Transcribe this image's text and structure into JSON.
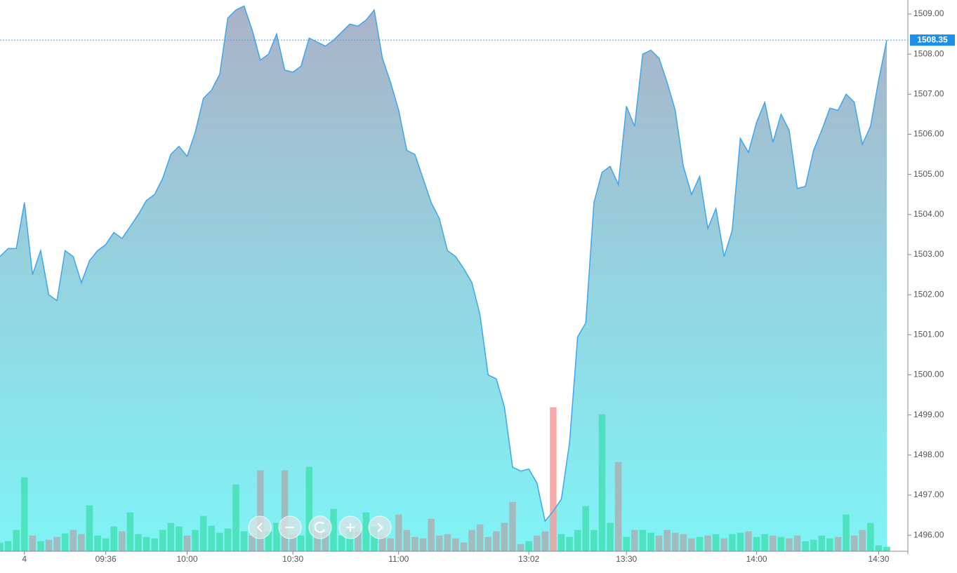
{
  "chart_data": {
    "type": "area",
    "categories": [
      null,
      null,
      null,
      "4",
      null,
      null,
      null,
      null,
      null,
      null,
      null,
      null,
      null,
      "09:36",
      null,
      null,
      null,
      null,
      null,
      null,
      null,
      null,
      null,
      "10:00",
      null,
      null,
      null,
      null,
      null,
      null,
      null,
      null,
      null,
      null,
      null,
      null,
      "10:30",
      null,
      null,
      null,
      null,
      null,
      null,
      null,
      null,
      null,
      null,
      null,
      null,
      "11:00",
      null,
      null,
      null,
      null,
      null,
      null,
      null,
      null,
      null,
      null,
      null,
      null,
      null,
      null,
      null,
      "13:02",
      null,
      null,
      null,
      null,
      null,
      null,
      null,
      null,
      null,
      null,
      null,
      "13:30",
      null,
      null,
      null,
      null,
      null,
      null,
      null,
      null,
      null,
      null,
      null,
      null,
      null,
      null,
      null,
      "14:00",
      null,
      null,
      null,
      null,
      null,
      null,
      null,
      null,
      null,
      null,
      null,
      null,
      null,
      null,
      "14:30",
      null
    ],
    "values": [
      1502.95,
      1503.15,
      1503.15,
      1504.3,
      1502.5,
      1503.1,
      1502.0,
      1501.85,
      1503.1,
      1502.95,
      1502.3,
      1502.85,
      1503.1,
      1503.25,
      1503.55,
      1503.4,
      1503.7,
      1504.0,
      1504.35,
      1504.5,
      1504.9,
      1505.5,
      1505.7,
      1505.45,
      1506.05,
      1506.9,
      1507.1,
      1507.5,
      1508.9,
      1509.1,
      1509.2,
      1508.6,
      1507.85,
      1508.0,
      1508.5,
      1507.6,
      1507.55,
      1507.7,
      1508.4,
      1508.3,
      1508.2,
      1508.35,
      1508.55,
      1508.75,
      1508.7,
      1508.85,
      1509.1,
      1507.9,
      1507.3,
      1506.6,
      1505.6,
      1505.5,
      1504.9,
      1504.3,
      1503.9,
      1503.1,
      1502.95,
      1502.65,
      1502.3,
      1501.5,
      1500.0,
      1499.9,
      1499.2,
      1497.7,
      1497.6,
      1497.65,
      1497.3,
      1496.35,
      1496.6,
      1496.9,
      1498.3,
      1500.95,
      1501.3,
      1504.3,
      1505.05,
      1505.2,
      1504.75,
      1506.7,
      1506.2,
      1508.0,
      1508.1,
      1507.9,
      1507.3,
      1506.6,
      1505.2,
      1504.5,
      1504.95,
      1503.65,
      1504.15,
      1502.95,
      1503.6,
      1505.9,
      1505.55,
      1506.3,
      1506.8,
      1505.8,
      1506.5,
      1506.1,
      1504.65,
      1504.7,
      1505.6,
      1506.1,
      1506.65,
      1506.6,
      1507.0,
      1506.8,
      1505.75,
      1506.2,
      1507.35,
      1508.35
    ],
    "color": "#3ea6ec",
    "volume": {
      "values": [
        12,
        14,
        30,
        105,
        22,
        14,
        16,
        20,
        25,
        30,
        24,
        65,
        22,
        18,
        35,
        28,
        55,
        24,
        20,
        18,
        30,
        40,
        35,
        22,
        30,
        50,
        36,
        26,
        32,
        95,
        28,
        22,
        115,
        28,
        40,
        115,
        24,
        22,
        120,
        30,
        26,
        60,
        22,
        30,
        28,
        55,
        35,
        22,
        18,
        52,
        30,
        20,
        18,
        46,
        22,
        24,
        18,
        12,
        30,
        38,
        20,
        28,
        40,
        70,
        10,
        14,
        22,
        28,
        205,
        24,
        20,
        30,
        64,
        30,
        195,
        40,
        127,
        20,
        30,
        30,
        26,
        22,
        30,
        26,
        24,
        18,
        20,
        22,
        24,
        18,
        24,
        26,
        28,
        20,
        24,
        22,
        20,
        18,
        22,
        14,
        16,
        22,
        18,
        20,
        52,
        22,
        30,
        40,
        8,
        6
      ],
      "up_color": "#45dfb5",
      "down_color": "#a7b1b4",
      "max_color": "#f59c9c"
    },
    "last_price": 1508.35,
    "ylim": [
      1495.6,
      1509.35
    ],
    "yticks": [
      {
        "value": 1496,
        "label": "1496.00"
      },
      {
        "value": 1497,
        "label": "1497.00"
      },
      {
        "value": 1498,
        "label": "1498.00"
      },
      {
        "value": 1499,
        "label": "1499.00"
      },
      {
        "value": 1500,
        "label": "1500.00"
      },
      {
        "value": 1501,
        "label": "1501.00"
      },
      {
        "value": 1502,
        "label": "1502.00"
      },
      {
        "value": 1503,
        "label": "1503.00"
      },
      {
        "value": 1504,
        "label": "1504.00"
      },
      {
        "value": 1505,
        "label": "1505.00"
      },
      {
        "value": 1506,
        "label": "1506.00"
      },
      {
        "value": 1507,
        "label": "1507.00"
      },
      {
        "value": 1508,
        "label": "1508.00"
      },
      {
        "value": 1509,
        "label": "1509.00"
      }
    ]
  }
}
